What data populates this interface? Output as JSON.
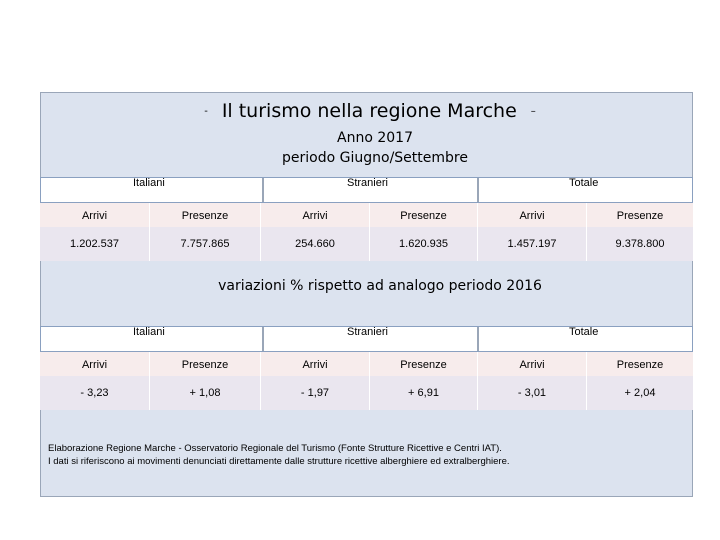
{
  "title": "Il turismo nella regione Marche",
  "title_dash_left": "-",
  "title_dash_right": "–",
  "subtitle_line1": "Anno 2017",
  "subtitle_line2": "periodo Giugno/Settembre",
  "groups": [
    "Italiani",
    "Stranieri",
    "Totale"
  ],
  "columns": [
    "Arrivi",
    "Presenze",
    "Arrivi",
    "Presenze",
    "Arrivi",
    "Presenze"
  ],
  "table1_values": [
    "1.202.537",
    "7.757.865",
    "254.660",
    "1.620.935",
    "1.457.197",
    "9.378.800"
  ],
  "variation_title": "variazioni % rispetto ad analogo periodo 2016",
  "table2_values": [
    "- 3,23",
    "+ 1,08",
    "- 1,97",
    "+ 6,91",
    "- 3,01",
    "+ 2,04"
  ],
  "footnote_line1": "Elaborazione Regione Marche - Osservatorio Regionale del Turismo (Fonte Strutture Ricettive e Centri IAT).",
  "footnote_line2": "I dati si riferiscono ai movimenti denunciati direttamente dalle strutture ricettive alberghiere ed extralberghiere."
}
